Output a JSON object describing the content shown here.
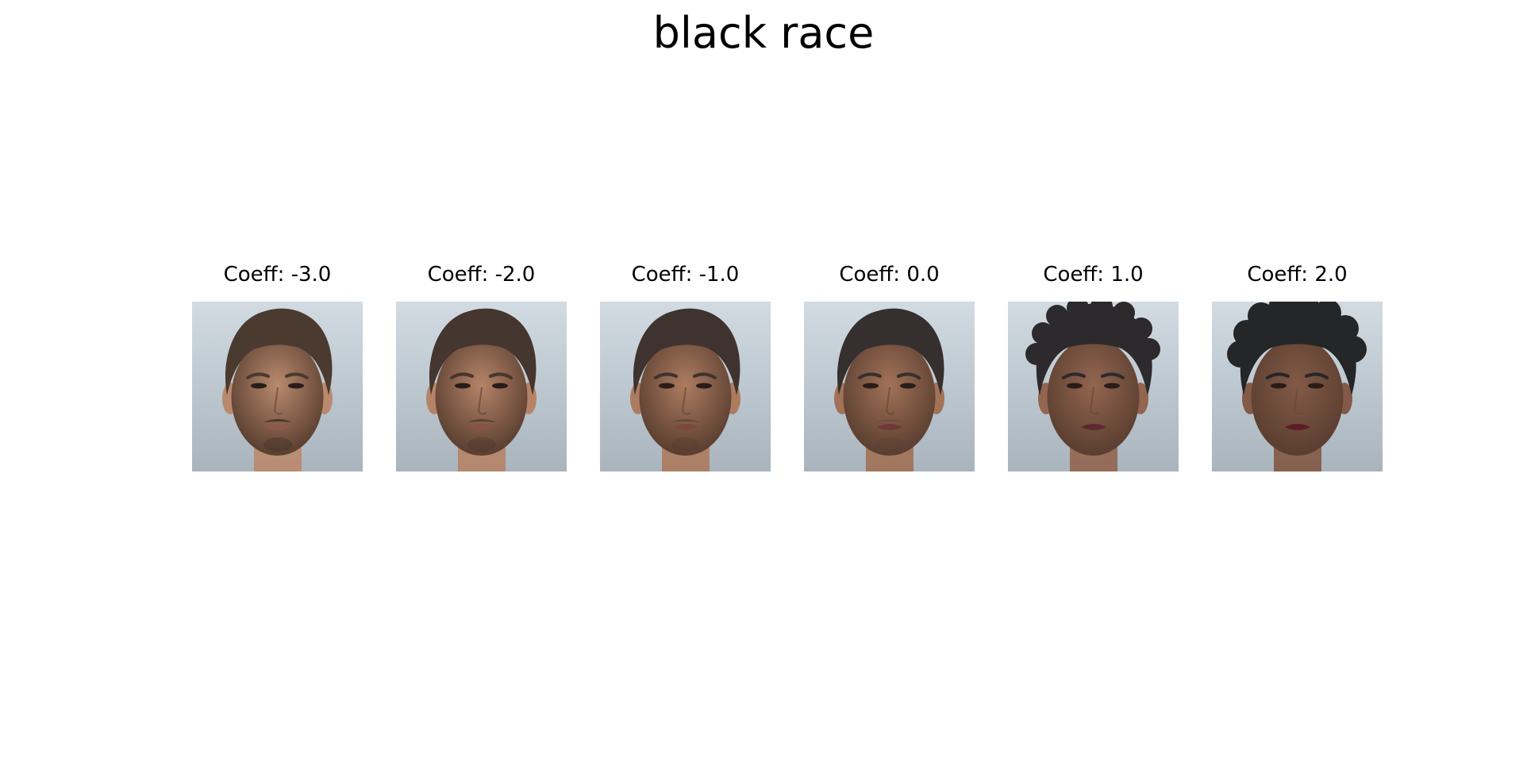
{
  "figure": {
    "title": "black race",
    "panels": [
      {
        "label": "Coeff: -3.0",
        "coeff": -3.0,
        "skin": "#b98a6e",
        "hair": "#4a3a30",
        "lips": "#8c5a4a",
        "beard": 1.0
      },
      {
        "label": "Coeff: -2.0",
        "coeff": -2.0,
        "skin": "#b58468",
        "hair": "#463630",
        "lips": "#86524a",
        "beard": 0.75
      },
      {
        "label": "Coeff: -1.0",
        "coeff": -1.0,
        "skin": "#ad7c60",
        "hair": "#3f3330",
        "lips": "#7c4842",
        "beard": 0.45
      },
      {
        "label": "Coeff: 0.0",
        "coeff": 0.0,
        "skin": "#a27258",
        "hair": "#35302f",
        "lips": "#6e3a38",
        "beard": 0.2
      },
      {
        "label": "Coeff: 1.0",
        "coeff": 1.0,
        "skin": "#936650",
        "hair": "#2c2a2c",
        "lips": "#5e2a2e",
        "beard": 0.0
      },
      {
        "label": "Coeff: 2.0",
        "coeff": 2.0,
        "skin": "#835a47",
        "hair": "#252628",
        "lips": "#5a1e26",
        "beard": 0.0
      }
    ]
  }
}
